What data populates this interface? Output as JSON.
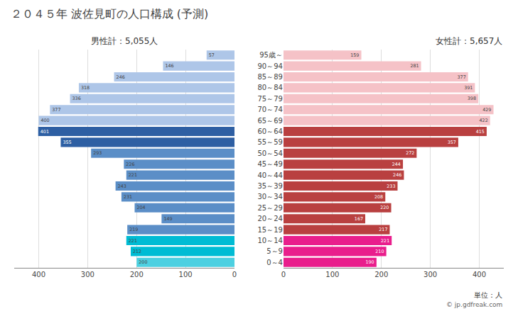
{
  "chart_data": {
    "type": "bar",
    "orientation": "horizontal",
    "title": "２０４５年 波佐見町の人口構成 (予測)",
    "categories": [
      "0～4",
      "5～9",
      "10～14",
      "15～19",
      "20～24",
      "25～29",
      "30～34",
      "35～39",
      "40～44",
      "45～49",
      "50～54",
      "55～59",
      "60～64",
      "65～69",
      "70～74",
      "75～79",
      "80～84",
      "85～89",
      "90～94",
      "95歳～"
    ],
    "series": [
      {
        "name": "男性計：5,055人",
        "values": [
          200,
          212,
          221,
          219,
          149,
          204,
          231,
          243,
          221,
          226,
          293,
          355,
          401,
          400,
          377,
          336,
          318,
          246,
          146,
          57
        ],
        "colors": [
          "#4dd0e1",
          "#00bcd4",
          "#00bcd4",
          "#5b8ec7",
          "#5b8ec7",
          "#5b8ec7",
          "#5b8ec7",
          "#5b8ec7",
          "#5b8ec7",
          "#5b8ec7",
          "#5b8ec7",
          "#2e5fa3",
          "#2e5fa3",
          "#aec6e8",
          "#aec6e8",
          "#aec6e8",
          "#aec6e8",
          "#aec6e8",
          "#aec6e8",
          "#aec6e8"
        ]
      },
      {
        "name": "女性計：5,657人",
        "values": [
          190,
          210,
          221,
          217,
          167,
          220,
          208,
          233,
          246,
          244,
          272,
          357,
          415,
          422,
          429,
          398,
          391,
          377,
          281,
          159
        ],
        "colors": [
          "#e91e8c",
          "#e91e8c",
          "#e91e8c",
          "#b94040",
          "#b94040",
          "#b94040",
          "#b94040",
          "#b94040",
          "#b94040",
          "#b94040",
          "#b94040",
          "#b94040",
          "#b94040",
          "#f5c2c7",
          "#f5c2c7",
          "#f5c2c7",
          "#f5c2c7",
          "#f5c2c7",
          "#f5c2c7",
          "#f5c2c7"
        ]
      }
    ],
    "xlim": [
      0,
      450
    ],
    "xticks": [
      0,
      100,
      200,
      300,
      400
    ],
    "grid": true,
    "data_labels": true,
    "annotations": [
      "単位：人",
      "© jp.gdfreak.com"
    ]
  }
}
